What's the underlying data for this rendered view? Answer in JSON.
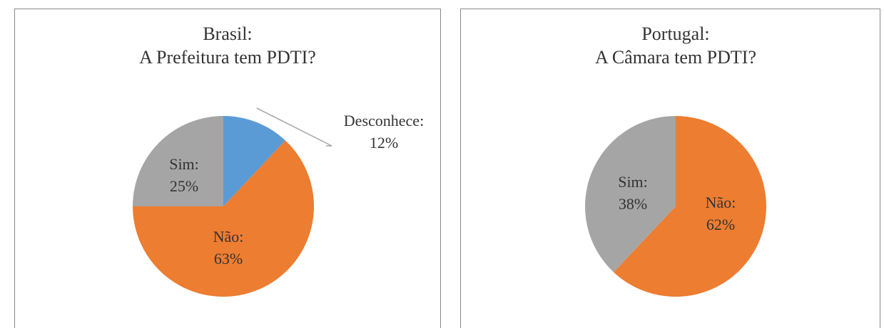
{
  "chart_data": [
    {
      "type": "pie",
      "title": [
        "Brasil:",
        "A Prefeitura tem PDTI?"
      ],
      "categories": [
        "Desconhece:",
        "Não:",
        "Sim:"
      ],
      "values": [
        12,
        63,
        25
      ],
      "value_labels": [
        "12%",
        "63%",
        "25%"
      ],
      "colors": [
        "#5b9bd5",
        "#ed7d31",
        "#a5a5a5"
      ]
    },
    {
      "type": "pie",
      "title": [
        "Portugal:",
        "A Câmara tem PDTI?"
      ],
      "categories": [
        "Não:",
        "Sim:"
      ],
      "values": [
        62,
        38
      ],
      "value_labels": [
        "62%",
        "38%"
      ],
      "colors": [
        "#ed7d31",
        "#a5a5a5"
      ]
    }
  ]
}
